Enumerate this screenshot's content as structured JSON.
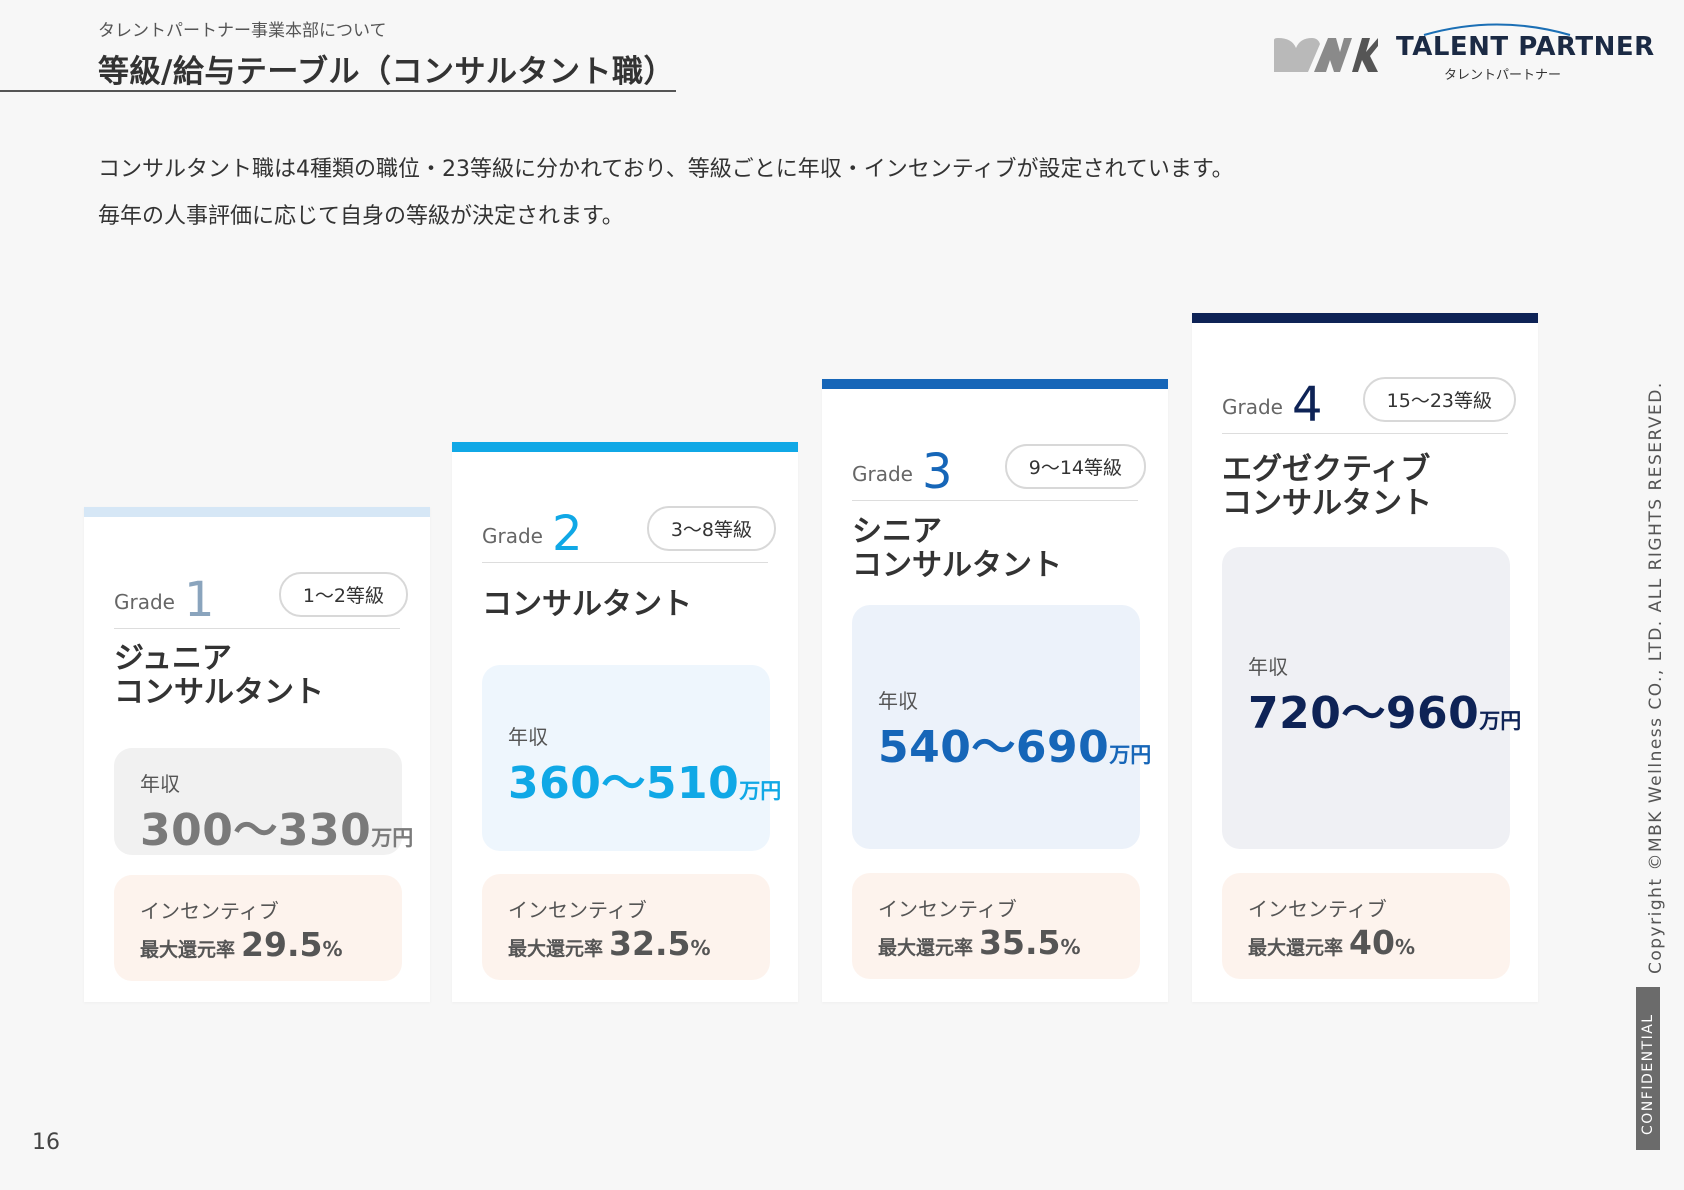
{
  "header": {
    "subtitle": "タレントパートナー事業本部について",
    "title": "等級/給与テーブル（コンサルタント職）"
  },
  "logo": {
    "name": "TALENT PARTNER",
    "kana": "タレントパートナー",
    "mark": "MWK"
  },
  "intro": {
    "line1": "コンサルタント職は4種類の職位・23等級に分かれており、等級ごとに年収・インセンティブが設定されています。",
    "line2": "毎年の人事評価に応じて自身の等級が決定されます。"
  },
  "grades": [
    {
      "grade_word": "Grade",
      "grade_num": "1",
      "range": "1〜2等級",
      "title_line1": "ジュニア",
      "title_line2": "コンサルタント",
      "salary_label": "年収",
      "salary": "300〜330",
      "salary_unit": "万円",
      "inc_label": "インセンティブ",
      "inc_text": "最大還元率",
      "inc_value": "29.5",
      "inc_unit": "%",
      "accent": "#d6e7f6",
      "num_color": "#8aa4bd",
      "salary_bg": "#f1f1f1",
      "salary_color": "#7a7a7a"
    },
    {
      "grade_word": "Grade",
      "grade_num": "2",
      "range": "3〜8等級",
      "title_line1": "コンサルタント",
      "title_line2": "",
      "salary_label": "年収",
      "salary": "360〜510",
      "salary_unit": "万円",
      "inc_label": "インセンティブ",
      "inc_text": "最大還元率",
      "inc_value": "32.5",
      "inc_unit": "%",
      "accent": "#10a8e6",
      "num_color": "#10a8e6",
      "salary_bg": "#eef6fd",
      "salary_color": "#10a8e6"
    },
    {
      "grade_word": "Grade",
      "grade_num": "3",
      "range": "9〜14等級",
      "title_line1": "シニア",
      "title_line2": "コンサルタント",
      "salary_label": "年収",
      "salary": "540〜690",
      "salary_unit": "万円",
      "inc_label": "インセンティブ",
      "inc_text": "最大還元率",
      "inc_value": "35.5",
      "inc_unit": "%",
      "accent": "#1666b8",
      "num_color": "#1666b8",
      "salary_bg": "#ecf2fa",
      "salary_color": "#1666b8"
    },
    {
      "grade_word": "Grade",
      "grade_num": "4",
      "range": "15〜23等級",
      "title_line1": "エグゼクティブ",
      "title_line2": "コンサルタント",
      "salary_label": "年収",
      "salary": "720〜960",
      "salary_unit": "万円",
      "inc_label": "インセンティブ",
      "inc_text": "最大還元率",
      "inc_value": "40",
      "inc_unit": "%",
      "accent": "#0e2356",
      "num_color": "#0e2356",
      "salary_bg": "#eff0f4",
      "salary_color": "#0e2356"
    }
  ],
  "footer": {
    "copyright": "Copyright ©MBK Wellness CO., LTD. ALL RIGHTS RESERVED.",
    "confidential": "CONFIDENTIAL",
    "page_number": "16"
  }
}
